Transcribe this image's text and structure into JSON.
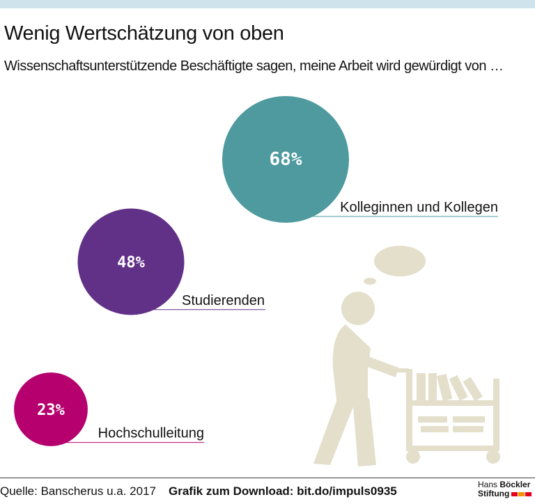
{
  "header": {
    "title": "Wenig Wertschätzung von oben",
    "subtitle": "Wissenschaftsunterstützende Beschäftigte sagen, meine Arbeit wird gewürdigt von …"
  },
  "chart_data": {
    "type": "bubble",
    "title": "Wenig Wertschätzung von oben",
    "subtitle": "Wissenschaftsunterstützende Beschäftigte sagen, meine Arbeit wird gewürdigt von …",
    "unit": "%",
    "categories": [
      "Kolleginnen und Kollegen",
      "Studierenden",
      "Hochschulleitung"
    ],
    "values": [
      68,
      48,
      23
    ],
    "value_labels": [
      "68%",
      "48%",
      "23%"
    ],
    "colors": [
      "#4e9a9e",
      "#613188",
      "#b5006d"
    ]
  },
  "footer": {
    "source": "Quelle: Banscherus u.a. 2017",
    "download": "Grafik zum Download: bit.do/impuls0935"
  },
  "logo": {
    "line1_light": "Hans",
    "line1_bold": "Böckler",
    "line2": "Stiftung",
    "colors": [
      "#e2001a",
      "#f39200",
      "#e2001a"
    ]
  },
  "illustration": {
    "color": "#e3dfcb"
  }
}
